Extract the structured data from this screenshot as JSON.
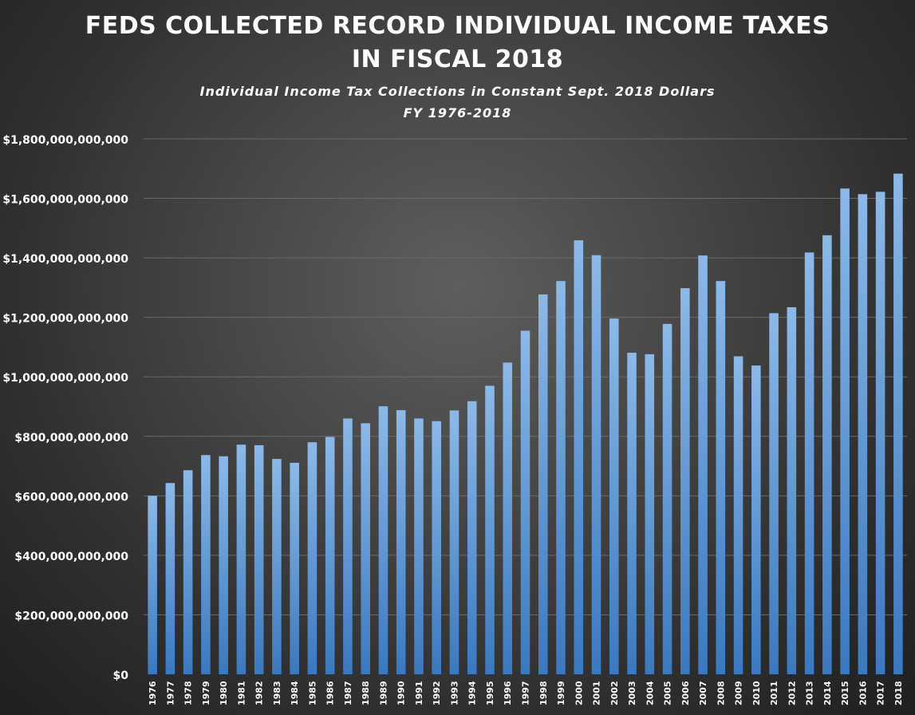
{
  "chart_data": {
    "type": "bar",
    "title": "FEDS COLLECTED RECORD INDIVIDUAL INCOME TAXES IN FISCAL 2018",
    "title_lines": [
      "FEDS COLLECTED RECORD INDIVIDUAL INCOME TAXES",
      "IN FISCAL 2018"
    ],
    "subtitle_lines": [
      "Individual Income Tax Collections in Constant Sept. 2018 Dollars",
      "FY 1976-2018"
    ],
    "xlabel": "",
    "ylabel": "",
    "ylim": [
      0,
      1800000000000
    ],
    "yticks": [
      0,
      200000000000,
      400000000000,
      600000000000,
      800000000000,
      1000000000000,
      1200000000000,
      1400000000000,
      1600000000000,
      1800000000000
    ],
    "ytick_labels": [
      "$0",
      "$200,000,000,000",
      "$400,000,000,000",
      "$600,000,000,000",
      "$800,000,000,000",
      "$1,000,000,000,000",
      "$1,200,000,000,000",
      "$1,400,000,000,000",
      "$1,600,000,000,000",
      "$1,800,000,000,000"
    ],
    "grid": true,
    "colors": {
      "bar_top": "#8cb9e8",
      "bar_bottom": "#3a78bf",
      "grid": "#6a6a6a",
      "text": "#ffffff"
    },
    "categories": [
      "1976",
      "1977",
      "1978",
      "1979",
      "1980",
      "1981",
      "1982",
      "1983",
      "1984",
      "1985",
      "1986",
      "1987",
      "1988",
      "1989",
      "1990",
      "1991",
      "1992",
      "1993",
      "1994",
      "1995",
      "1996",
      "1997",
      "1998",
      "1999",
      "2000",
      "2001",
      "2002",
      "2003",
      "2004",
      "2005",
      "2006",
      "2007",
      "2008",
      "2009",
      "2010",
      "2011",
      "2012",
      "2013",
      "2014",
      "2015",
      "2016",
      "2017",
      "2018"
    ],
    "values": [
      600000000000,
      643000000000,
      686000000000,
      737000000000,
      733000000000,
      772000000000,
      770000000000,
      724000000000,
      711000000000,
      780000000000,
      798000000000,
      860000000000,
      844000000000,
      901000000000,
      888000000000,
      860000000000,
      851000000000,
      887000000000,
      918000000000,
      970000000000,
      1048000000000,
      1155000000000,
      1277000000000,
      1322000000000,
      1459000000000,
      1409000000000,
      1196000000000,
      1081000000000,
      1076000000000,
      1178000000000,
      1298000000000,
      1408000000000,
      1322000000000,
      1069000000000,
      1038000000000,
      1214000000000,
      1234000000000,
      1418000000000,
      1476000000000,
      1633000000000,
      1614000000000,
      1622000000000,
      1683000000000
    ]
  }
}
